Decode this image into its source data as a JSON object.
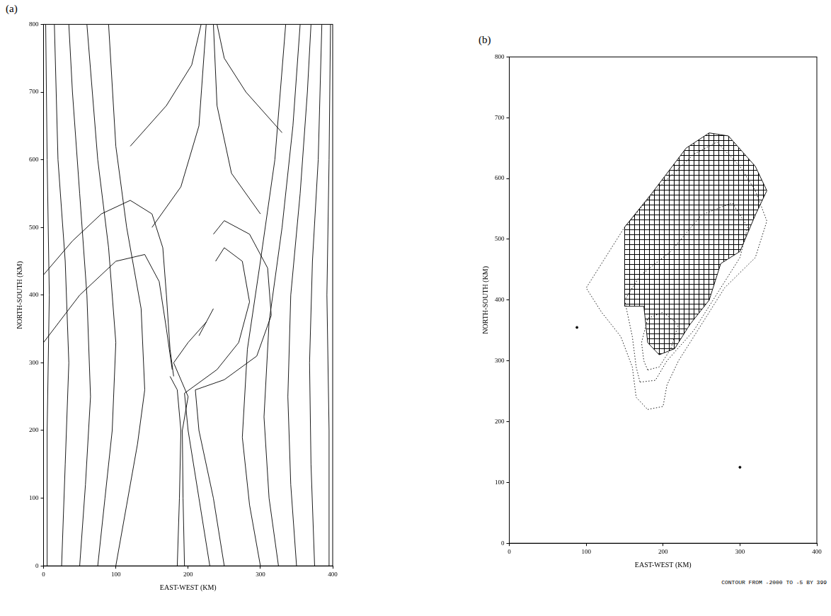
{
  "chart_data": [
    {
      "type": "line",
      "title": "(a)",
      "xlabel": "EAST-WEST (KM)",
      "ylabel": "NORTH-SOUTH (KM)",
      "xlim": [
        0,
        400
      ],
      "ylim": [
        0,
        800
      ],
      "xticks": [
        0,
        100,
        200,
        300,
        400
      ],
      "yticks": [
        0,
        100,
        200,
        300,
        400,
        500,
        600,
        700,
        800
      ],
      "color": "#000000",
      "series": [
        {
          "x": [
            5,
            5,
            8,
            5,
            3
          ],
          "values": [
            0,
            200,
            400,
            600,
            800
          ]
        },
        {
          "x": [
            25,
            30,
            35,
            30,
            20,
            15
          ],
          "values": [
            0,
            150,
            300,
            450,
            600,
            800
          ]
        },
        {
          "x": [
            50,
            58,
            65,
            60,
            50,
            40,
            35
          ],
          "values": [
            0,
            120,
            250,
            400,
            550,
            700,
            800
          ]
        },
        {
          "x": [
            75,
            85,
            95,
            100,
            90,
            75,
            60
          ],
          "values": [
            0,
            100,
            200,
            330,
            470,
            600,
            800
          ]
        },
        {
          "x": [
            100,
            115,
            130,
            140,
            135,
            115,
            100,
            90
          ],
          "values": [
            0,
            90,
            180,
            260,
            380,
            500,
            620,
            800
          ]
        },
        {
          "x": [
            395,
            395,
            392,
            395,
            397
          ],
          "values": [
            0,
            200,
            400,
            600,
            800
          ]
        },
        {
          "x": [
            375,
            370,
            368,
            372,
            380,
            385
          ],
          "values": [
            0,
            150,
            300,
            450,
            600,
            800
          ]
        },
        {
          "x": [
            350,
            342,
            338,
            342,
            355,
            365,
            370
          ],
          "values": [
            0,
            120,
            250,
            400,
            550,
            700,
            800
          ]
        },
        {
          "x": [
            325,
            312,
            305,
            312,
            330,
            345,
            355
          ],
          "values": [
            0,
            100,
            220,
            360,
            500,
            650,
            800
          ]
        },
        {
          "x": [
            300,
            285,
            275,
            282,
            300,
            320,
            335
          ],
          "values": [
            0,
            90,
            190,
            320,
            450,
            600,
            800
          ]
        },
        {
          "x": [
            250,
            235,
            215,
            210,
            250,
            295,
            315,
            310,
            285,
            250,
            235
          ],
          "values": [
            0,
            100,
            200,
            260,
            275,
            310,
            370,
            440,
            490,
            510,
            490
          ]
        },
        {
          "x": [
            230,
            215,
            200,
            195,
            240,
            270,
            285,
            275,
            250,
            238
          ],
          "values": [
            0,
            100,
            200,
            255,
            290,
            330,
            390,
            450,
            470,
            450
          ]
        },
        {
          "x": [
            0,
            40,
            80,
            120,
            150,
            165,
            170,
            175,
            180
          ],
          "values": [
            430,
            480,
            520,
            540,
            520,
            470,
            400,
            320,
            280
          ]
        },
        {
          "x": [
            0,
            50,
            100,
            140,
            160,
            170,
            178
          ],
          "values": [
            330,
            400,
            450,
            460,
            420,
            350,
            290
          ]
        },
        {
          "x": [
            150,
            190,
            215,
            225
          ],
          "values": [
            500,
            560,
            650,
            800
          ]
        },
        {
          "x": [
            300,
            260,
            240,
            235
          ],
          "values": [
            520,
            580,
            680,
            800
          ]
        },
        {
          "x": [
            120,
            170,
            205,
            218
          ],
          "values": [
            620,
            680,
            740,
            800
          ]
        },
        {
          "x": [
            330,
            280,
            250,
            240
          ],
          "values": [
            640,
            700,
            750,
            800
          ]
        },
        {
          "x": [
            185,
            188,
            190,
            185,
            175
          ],
          "values": [
            0,
            100,
            200,
            260,
            280
          ]
        },
        {
          "x": [
            195,
            193,
            192,
            200,
            180,
            200,
            225
          ],
          "values": [
            0,
            100,
            200,
            250,
            300,
            330,
            360
          ]
        },
        {
          "x": [
            215,
            225,
            235
          ],
          "values": [
            340,
            360,
            380
          ]
        }
      ]
    },
    {
      "type": "line",
      "title": "(b)",
      "xlabel": "EAST-WEST (KM)",
      "ylabel": "NORTH-SOUTH (KM)",
      "annotation": "CONTOUR FROM -2000 TO -5 BY 399",
      "xlim": [
        0,
        400
      ],
      "ylim": [
        0,
        800
      ],
      "xticks": [
        0,
        100,
        200,
        300,
        400
      ],
      "yticks": [
        0,
        100,
        200,
        300,
        400,
        500,
        600,
        700,
        800
      ],
      "color": "#000000",
      "series": [
        {
          "type": "area",
          "x": [
            150,
            150,
            185,
            230,
            260,
            285,
            320,
            335,
            320,
            300,
            275,
            260,
            235,
            215,
            195,
            180,
            175,
            150
          ],
          "values": [
            390,
            520,
            575,
            650,
            675,
            670,
            620,
            580,
            540,
            480,
            460,
            400,
            360,
            320,
            310,
            330,
            390,
            390
          ]
        },
        {
          "line_style": "dotted",
          "x": [
            180,
            200,
            205,
            220,
            245,
            280,
            320,
            335,
            320,
            300,
            270,
            240,
            190,
            150,
            120,
            100,
            120,
            145,
            160,
            165,
            180
          ],
          "values": [
            220,
            225,
            260,
            300,
            350,
            420,
            470,
            530,
            580,
            620,
            660,
            640,
            580,
            520,
            460,
            420,
            380,
            340,
            290,
            240,
            220
          ]
        },
        {
          "line_style": "dotted",
          "x": [
            170,
            190,
            205,
            240,
            270,
            300,
            310,
            290,
            250,
            210,
            170,
            150,
            160,
            165,
            170
          ],
          "values": [
            265,
            268,
            300,
            350,
            410,
            470,
            520,
            560,
            540,
            480,
            440,
            400,
            340,
            290,
            265
          ]
        },
        {
          "line_style": "dotted",
          "x": [
            180,
            195,
            210,
            220,
            200,
            180,
            172,
            175,
            180
          ],
          "values": [
            285,
            290,
            320,
            360,
            380,
            370,
            330,
            300,
            285
          ]
        },
        {
          "type": "scatter",
          "x": [
            88,
            300
          ],
          "values": [
            355,
            125
          ]
        }
      ]
    }
  ]
}
